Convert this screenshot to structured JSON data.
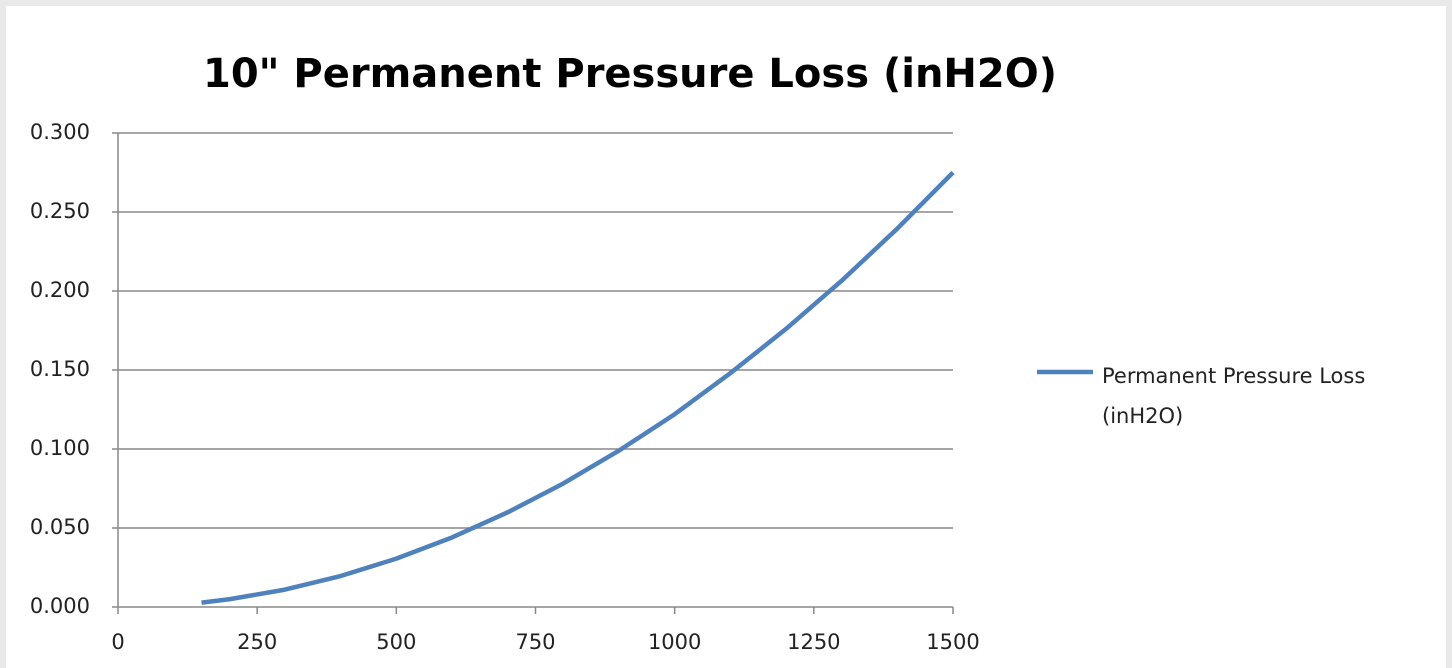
{
  "chart_data": {
    "type": "line",
    "title": "10\" Permanent Pressure Loss (inH2O)",
    "x": [
      150,
      200,
      300,
      400,
      500,
      600,
      700,
      800,
      900,
      1000,
      1100,
      1200,
      1300,
      1400,
      1500
    ],
    "series": [
      {
        "name": "Permanent Pressure Loss (inH2O)",
        "color": "#4f81bd",
        "values": [
          0.00275,
          0.0049,
          0.011,
          0.0196,
          0.0306,
          0.044,
          0.0599,
          0.0782,
          0.099,
          0.122,
          0.148,
          0.176,
          0.2065,
          0.2395,
          0.275
        ]
      }
    ],
    "xlim": [
      0,
      1500
    ],
    "xticks": [
      0,
      250,
      500,
      750,
      1000,
      1250,
      1500
    ],
    "ylim": [
      0,
      0.3
    ],
    "yticks": [
      {
        "value": 0,
        "label": "0.000"
      },
      {
        "value": 0.05,
        "label": "0.050"
      },
      {
        "value": 0.1,
        "label": "0.100"
      },
      {
        "value": 0.15,
        "label": "0.150"
      },
      {
        "value": 0.2,
        "label": "0.200"
      },
      {
        "value": 0.25,
        "label": "0.250"
      },
      {
        "value": 0.3,
        "label": "0.300"
      }
    ],
    "grid": true,
    "legend": "right"
  }
}
